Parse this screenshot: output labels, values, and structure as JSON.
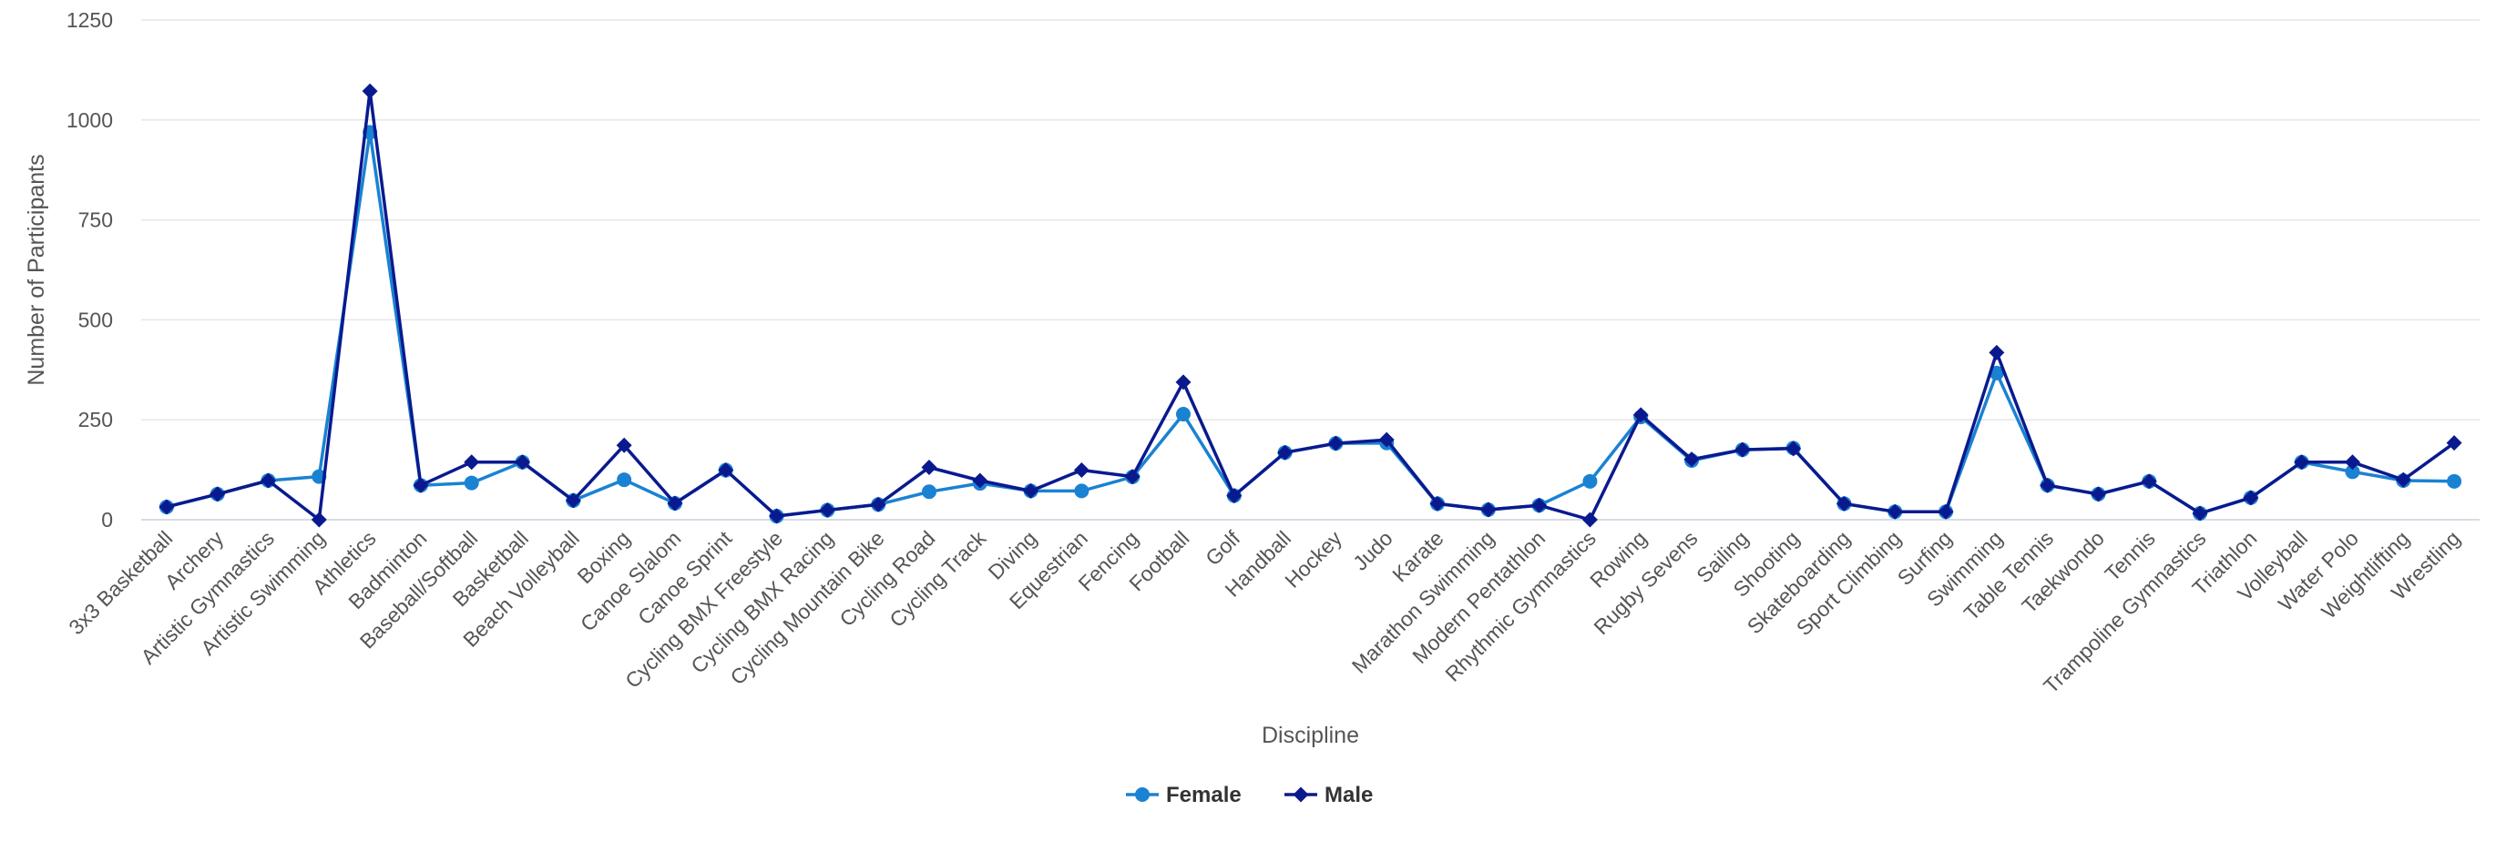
{
  "chart_data": {
    "type": "line",
    "xlabel": "Discipline",
    "ylabel": "Number of Participants",
    "ylim": [
      0,
      1250
    ],
    "yticks": [
      0,
      250,
      500,
      750,
      1000,
      1250
    ],
    "grid": true,
    "legend_position": "bottom-center",
    "categories": [
      "3x3 Basketball",
      "Archery",
      "Artistic Gymnastics",
      "Artistic Swimming",
      "Athletics",
      "Badminton",
      "Baseball/Softball",
      "Basketball",
      "Beach Volleyball",
      "Boxing",
      "Canoe Slalom",
      "Canoe Sprint",
      "Cycling BMX Freestyle",
      "Cycling BMX Racing",
      "Cycling Mountain Bike",
      "Cycling Road",
      "Cycling Track",
      "Diving",
      "Equestrian",
      "Fencing",
      "Football",
      "Golf",
      "Handball",
      "Hockey",
      "Judo",
      "Karate",
      "Marathon Swimming",
      "Modern Pentathlon",
      "Rhythmic Gymnastics",
      "Rowing",
      "Rugby Sevens",
      "Sailing",
      "Shooting",
      "Skateboarding",
      "Sport Climbing",
      "Surfing",
      "Swimming",
      "Table Tennis",
      "Taekwondo",
      "Tennis",
      "Trampoline Gymnastics",
      "Triathlon",
      "Volleyball",
      "Water Polo",
      "Weightlifting",
      "Wrestling"
    ],
    "series": [
      {
        "name": "Female",
        "color": "#1a82d2",
        "marker": "circle",
        "values": [
          32,
          64,
          98,
          108,
          969,
          86,
          92,
          144,
          48,
          100,
          41,
          124,
          9,
          24,
          38,
          70,
          91,
          72,
          72,
          107,
          264,
          60,
          168,
          191,
          192,
          40,
          25,
          36,
          96,
          257,
          148,
          175,
          179,
          40,
          20,
          20,
          367,
          86,
          64,
          96,
          16,
          55,
          144,
          120,
          98,
          96
        ]
      },
      {
        "name": "Male",
        "color": "#0a1a8e",
        "marker": "diamond",
        "values": [
          32,
          64,
          98,
          0,
          1072,
          86,
          144,
          144,
          48,
          186,
          41,
          124,
          9,
          24,
          38,
          131,
          98,
          72,
          124,
          108,
          344,
          60,
          168,
          191,
          200,
          40,
          25,
          36,
          0,
          262,
          151,
          175,
          178,
          40,
          20,
          20,
          418,
          86,
          64,
          96,
          16,
          55,
          144,
          144,
          100,
          192
        ]
      }
    ]
  }
}
